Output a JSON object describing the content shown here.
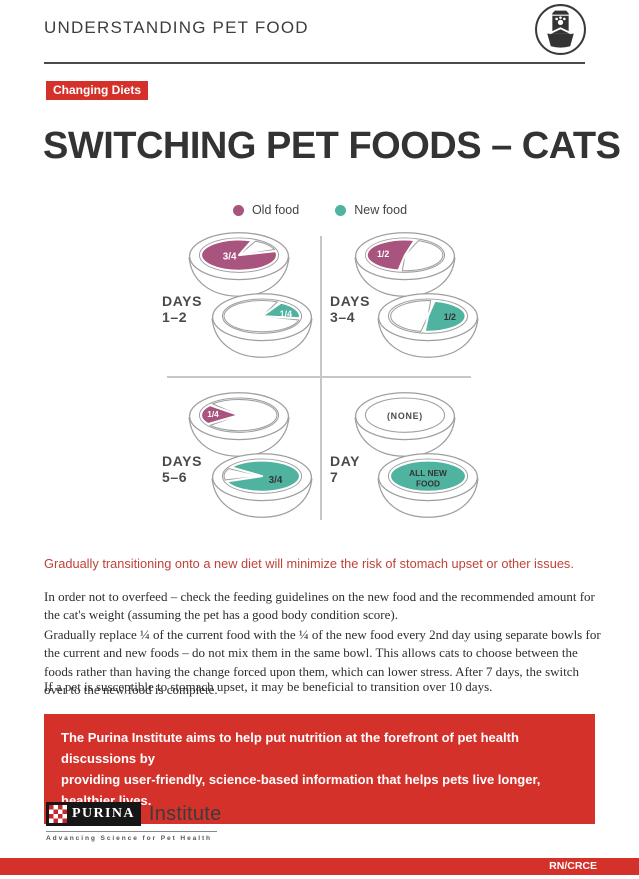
{
  "header": {
    "title": "UNDERSTANDING PET FOOD",
    "icon": "pet-food-bag-and-bowl"
  },
  "tag": {
    "label": "Changing Diets"
  },
  "page_title": "SWITCHING PET FOODS – CATS",
  "legend": {
    "old_label": "Old food",
    "new_label": "New food"
  },
  "colors": {
    "red": "#d5312b",
    "old_food": "#a9537f",
    "new_food": "#4fb3a0",
    "lead_text": "#bf4238"
  },
  "diagram": {
    "quadrants": [
      {
        "period": "DAYS",
        "range": "1–2",
        "old_bowl_label": "3/4",
        "new_bowl_label": "1/4"
      },
      {
        "period": "DAYS",
        "range": "3–4",
        "old_bowl_label": "1/2",
        "new_bowl_label": "1/2"
      },
      {
        "period": "DAYS",
        "range": "5–6",
        "old_bowl_label": "1/4",
        "new_bowl_label": "3/4"
      },
      {
        "period": "DAY",
        "range": "7",
        "old_bowl_label": "(NONE)",
        "new_bowl_line1": "ALL NEW",
        "new_bowl_line2": "FOOD"
      }
    ]
  },
  "lead": "Gradually transitioning onto a new diet will minimize the risk of stomach upset or other issues.",
  "paragraphs": [
    "In order not to overfeed – check the feeding guidelines on the new food and the recommended amount for the cat's weight (assuming the pet has a good body condition score).",
    "Gradually replace ¼ of the current food with the ¼ of the new food every 2nd day using separate bowls for the current and new foods – do not mix them in the same bowl. This allows cats to choose between the foods rather than having the change forced upon them, which can lower stress. After 7 days, the switch over to the new food is complete.",
    "If a pet is susceptible to stomach upset, it may be beneficial to transition over 10 days."
  ],
  "banner": {
    "line1": "The Purina Institute aims to help put nutrition at the forefront of pet health discussions by",
    "line2": "providing user-friendly, science-based information that helps pets live longer, healthier lives."
  },
  "footer": {
    "brand": "PURINA",
    "brand_suffix": "Institute",
    "tagline": "Advancing Science for Pet Health",
    "code": "RN/CRCE"
  }
}
